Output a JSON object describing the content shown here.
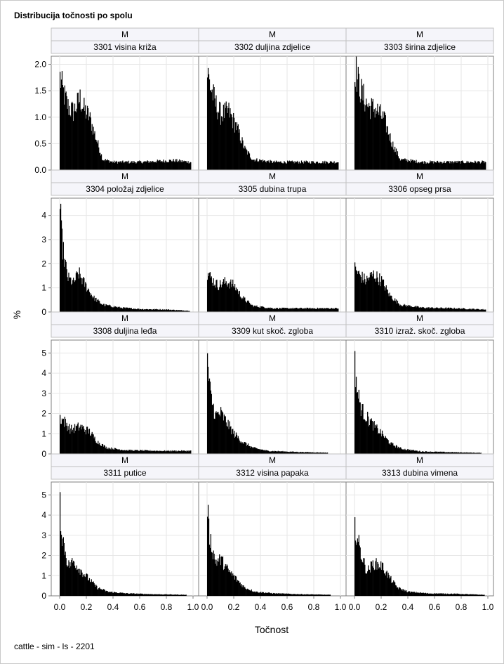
{
  "title": "Distribucija točnosti po spolu",
  "footer": "cattle - sim - ls - 2201",
  "ylabel": "%",
  "xlabel": "Točnost",
  "colors": {
    "bar": "#000000",
    "grid": "#e6e6e6",
    "axis": "#7f7f7f",
    "header_bg": "#f5f5fa",
    "header_border": "#c0c0c0"
  },
  "chart_data": {
    "type": "bar",
    "layout": "panel grid 4 rows x 3 columns, shared x axis at bottom, shared y per row",
    "xlabel": "Točnost",
    "ylabel": "%",
    "x_ticks": [
      "0.0",
      "0.2",
      "0.4",
      "0.6",
      "0.8",
      "1.0"
    ],
    "xlim": [
      0,
      1
    ],
    "bin_width": 0.005,
    "grid": true,
    "rows": [
      {
        "ylim": [
          0,
          2.1
        ],
        "y_ticks": [
          "0.0",
          "0.5",
          "1.0",
          "1.5",
          "2.0"
        ],
        "y_values": [
          0,
          0.5,
          1.0,
          1.5,
          2.0
        ]
      },
      {
        "ylim": [
          0,
          4.6
        ],
        "y_ticks": [
          "0",
          "1",
          "2",
          "3",
          "4"
        ],
        "y_values": [
          0,
          1,
          2,
          3,
          4
        ]
      },
      {
        "ylim": [
          0,
          5.5
        ],
        "y_ticks": [
          "0",
          "1",
          "2",
          "3",
          "4",
          "5"
        ],
        "y_values": [
          0,
          1,
          2,
          3,
          4,
          5
        ]
      },
      {
        "ylim": [
          0,
          5.5
        ],
        "y_ticks": [
          "0",
          "1",
          "2",
          "3",
          "4",
          "5"
        ],
        "y_values": [
          0,
          1,
          2,
          3,
          4,
          5
        ]
      }
    ],
    "panels": [
      {
        "group": "M",
        "trait": "3301 visina križa",
        "row": 0,
        "col": 0,
        "shape": [
          [
            0.0,
            1.75
          ],
          [
            0.02,
            1.5
          ],
          [
            0.06,
            1.2
          ],
          [
            0.1,
            1.1
          ],
          [
            0.15,
            1.35
          ],
          [
            0.18,
            1.15
          ],
          [
            0.22,
            1.0
          ],
          [
            0.27,
            0.6
          ],
          [
            0.32,
            0.2
          ],
          [
            0.4,
            0.15
          ],
          [
            0.6,
            0.15
          ],
          [
            0.85,
            0.18
          ],
          [
            0.98,
            0.15
          ]
        ]
      },
      {
        "group": "M",
        "trait": "3302 duljina zdjelice",
        "row": 0,
        "col": 1,
        "shape": [
          [
            0.0,
            1.85
          ],
          [
            0.02,
            1.6
          ],
          [
            0.06,
            1.25
          ],
          [
            0.1,
            1.05
          ],
          [
            0.16,
            1.1
          ],
          [
            0.22,
            0.8
          ],
          [
            0.28,
            0.4
          ],
          [
            0.34,
            0.2
          ],
          [
            0.5,
            0.15
          ],
          [
            0.75,
            0.15
          ],
          [
            0.98,
            0.15
          ]
        ]
      },
      {
        "group": "M",
        "trait": "3303 širina zdjelice",
        "row": 0,
        "col": 2,
        "shape": [
          [
            0.0,
            2.0
          ],
          [
            0.02,
            1.7
          ],
          [
            0.06,
            1.4
          ],
          [
            0.1,
            1.2
          ],
          [
            0.16,
            1.15
          ],
          [
            0.22,
            0.95
          ],
          [
            0.28,
            0.5
          ],
          [
            0.34,
            0.2
          ],
          [
            0.5,
            0.15
          ],
          [
            0.75,
            0.15
          ],
          [
            0.98,
            0.15
          ]
        ]
      },
      {
        "group": "M",
        "trait": "3304 položaj zdjelice",
        "row": 1,
        "col": 0,
        "shape": [
          [
            0.0,
            4.3
          ],
          [
            0.01,
            3.2
          ],
          [
            0.03,
            2.2
          ],
          [
            0.06,
            1.4
          ],
          [
            0.1,
            1.2
          ],
          [
            0.14,
            1.6
          ],
          [
            0.18,
            1.2
          ],
          [
            0.25,
            0.6
          ],
          [
            0.32,
            0.3
          ],
          [
            0.45,
            0.18
          ],
          [
            0.6,
            0.12
          ],
          [
            0.8,
            0.1
          ],
          [
            0.97,
            0.05
          ]
        ]
      },
      {
        "group": "M",
        "trait": "3305 dubina trupa",
        "row": 1,
        "col": 1,
        "shape": [
          [
            0.0,
            1.6
          ],
          [
            0.04,
            1.3
          ],
          [
            0.08,
            1.1
          ],
          [
            0.14,
            1.25
          ],
          [
            0.2,
            1.1
          ],
          [
            0.26,
            0.6
          ],
          [
            0.34,
            0.25
          ],
          [
            0.5,
            0.15
          ],
          [
            0.75,
            0.15
          ],
          [
            0.98,
            0.15
          ]
        ]
      },
      {
        "group": "M",
        "trait": "3306 opseg prsa",
        "row": 1,
        "col": 2,
        "shape": [
          [
            0.0,
            1.8
          ],
          [
            0.03,
            1.55
          ],
          [
            0.08,
            1.3
          ],
          [
            0.14,
            1.55
          ],
          [
            0.2,
            1.3
          ],
          [
            0.26,
            0.7
          ],
          [
            0.34,
            0.3
          ],
          [
            0.5,
            0.18
          ],
          [
            0.75,
            0.15
          ],
          [
            0.98,
            0.1
          ]
        ]
      },
      {
        "group": "M",
        "trait": "3308 duljina leđa",
        "row": 2,
        "col": 0,
        "shape": [
          [
            0.0,
            1.8
          ],
          [
            0.04,
            1.55
          ],
          [
            0.08,
            1.2
          ],
          [
            0.15,
            1.35
          ],
          [
            0.22,
            1.1
          ],
          [
            0.28,
            0.6
          ],
          [
            0.35,
            0.3
          ],
          [
            0.5,
            0.18
          ],
          [
            0.75,
            0.15
          ],
          [
            0.98,
            0.15
          ]
        ]
      },
      {
        "group": "M",
        "trait": "3309 kut skoč. zgloba",
        "row": 2,
        "col": 1,
        "shape": [
          [
            0.0,
            5.2
          ],
          [
            0.01,
            3.5
          ],
          [
            0.03,
            2.7
          ],
          [
            0.06,
            1.9
          ],
          [
            0.1,
            2.0
          ],
          [
            0.14,
            1.6
          ],
          [
            0.2,
            1.0
          ],
          [
            0.26,
            0.6
          ],
          [
            0.34,
            0.3
          ],
          [
            0.45,
            0.15
          ],
          [
            0.65,
            0.1
          ],
          [
            0.9,
            0.06
          ]
        ]
      },
      {
        "group": "M",
        "trait": "3310 izraž. skoč. zgloba",
        "row": 2,
        "col": 2,
        "shape": [
          [
            0.0,
            4.4
          ],
          [
            0.02,
            3.0
          ],
          [
            0.05,
            2.2
          ],
          [
            0.09,
            1.8
          ],
          [
            0.14,
            1.4
          ],
          [
            0.2,
            1.0
          ],
          [
            0.27,
            0.5
          ],
          [
            0.35,
            0.25
          ],
          [
            0.5,
            0.12
          ],
          [
            0.75,
            0.08
          ],
          [
            0.95,
            0.05
          ]
        ]
      },
      {
        "group": "M",
        "trait": "3311 putice",
        "row": 3,
        "col": 0,
        "shape": [
          [
            0.0,
            4.7
          ],
          [
            0.01,
            3.2
          ],
          [
            0.03,
            2.5
          ],
          [
            0.06,
            1.5
          ],
          [
            0.1,
            1.7
          ],
          [
            0.15,
            1.3
          ],
          [
            0.22,
            0.8
          ],
          [
            0.28,
            0.4
          ],
          [
            0.36,
            0.2
          ],
          [
            0.5,
            0.12
          ],
          [
            0.7,
            0.08
          ],
          [
            0.95,
            0.05
          ]
        ]
      },
      {
        "group": "M",
        "trait": "3312 visina papaka",
        "row": 3,
        "col": 1,
        "shape": [
          [
            0.0,
            4.7
          ],
          [
            0.01,
            3.2
          ],
          [
            0.03,
            2.5
          ],
          [
            0.06,
            1.7
          ],
          [
            0.1,
            1.8
          ],
          [
            0.15,
            1.3
          ],
          [
            0.22,
            0.8
          ],
          [
            0.28,
            0.4
          ],
          [
            0.36,
            0.2
          ],
          [
            0.5,
            0.12
          ],
          [
            0.7,
            0.08
          ],
          [
            0.92,
            0.05
          ]
        ]
      },
      {
        "group": "M",
        "trait": "3313 dubina vimena",
        "row": 3,
        "col": 2,
        "shape": [
          [
            0.0,
            3.5
          ],
          [
            0.02,
            2.8
          ],
          [
            0.05,
            2.0
          ],
          [
            0.09,
            1.2
          ],
          [
            0.14,
            1.6
          ],
          [
            0.2,
            1.5
          ],
          [
            0.26,
            0.9
          ],
          [
            0.32,
            0.4
          ],
          [
            0.4,
            0.2
          ],
          [
            0.55,
            0.12
          ],
          [
            0.75,
            0.1
          ],
          [
            0.97,
            0.05
          ]
        ]
      }
    ]
  }
}
